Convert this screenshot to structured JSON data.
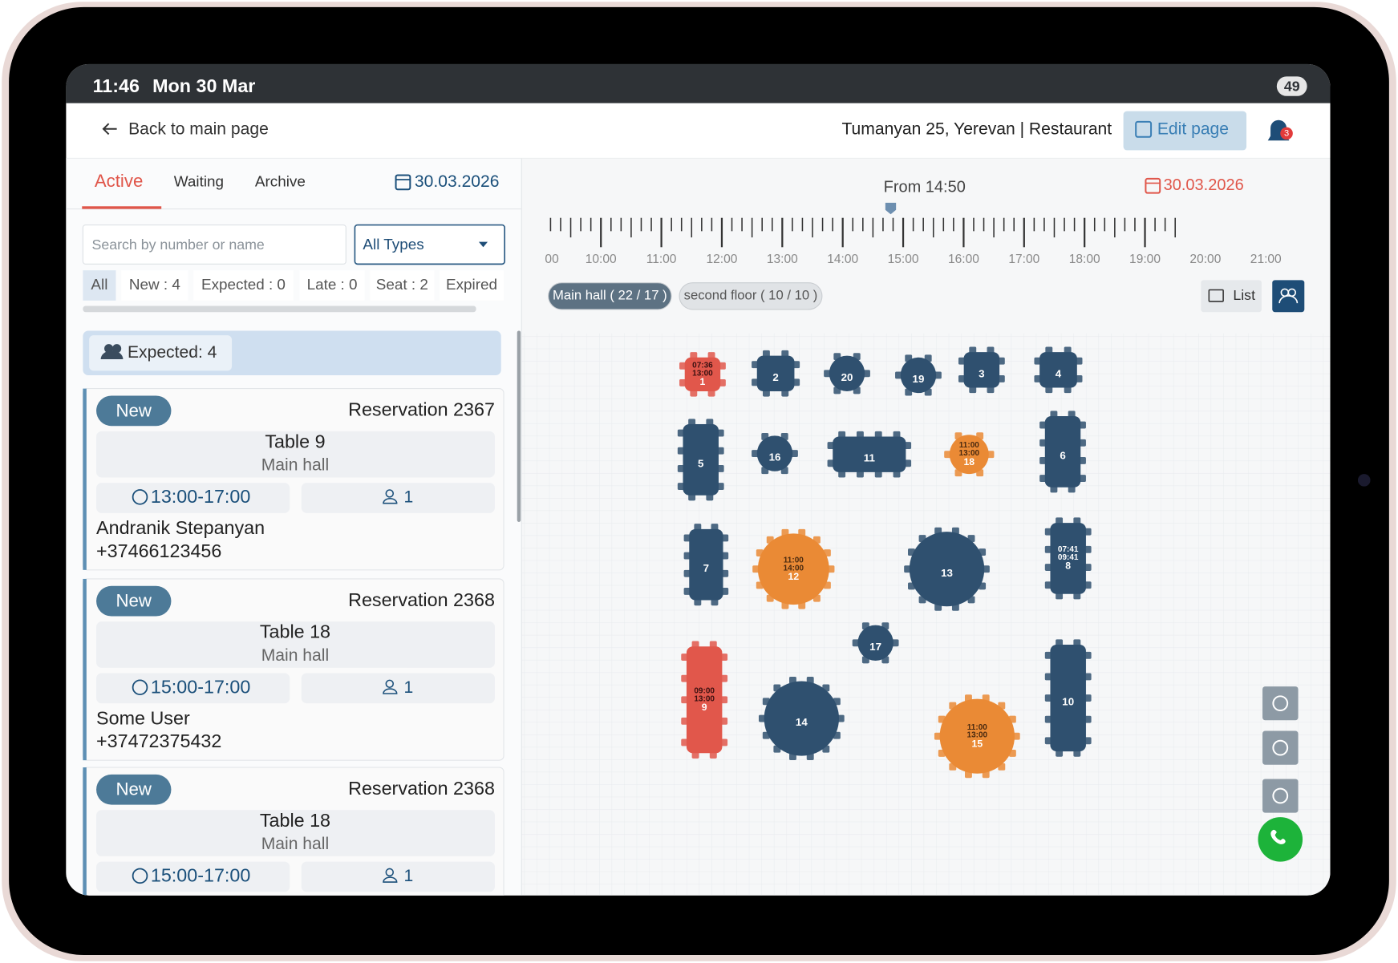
{
  "status_bar": {
    "time": "11:46",
    "date": "Mon 30 Mar",
    "battery": "49"
  },
  "header": {
    "back": "Back to main page",
    "location": "Tumanyan 25, Yerevan | Restaurant",
    "edit": "Edit page",
    "notifications": "3"
  },
  "tabs": [
    "Active",
    "Waiting",
    "Archive"
  ],
  "list_date": "30.03.2026",
  "search_placeholder": "Search by number or name",
  "type_filter": "All Types",
  "filters": [
    "All",
    "New : 4",
    "Expected : 0",
    "Late : 0",
    "Seat : 2",
    "Expired"
  ],
  "group": "Expected: 4",
  "reservations": [
    {
      "status": "New",
      "title": "Reservation 2367",
      "table": "Table 9",
      "hall": "Main hall",
      "time": "13:00-17:00",
      "guests": "1",
      "name": "Andranik Stepanyan",
      "phone": "+37466123456"
    },
    {
      "status": "New",
      "title": "Reservation 2368",
      "table": "Table 18",
      "hall": "Main hall",
      "time": "15:00-17:00",
      "guests": "1",
      "name": "Some User",
      "phone": "+37472375432"
    },
    {
      "status": "New",
      "title": "Reservation 2368",
      "table": "Table 18",
      "hall": "Main hall",
      "time": "15:00-17:00",
      "guests": "1"
    }
  ],
  "timeline": {
    "from": "From 14:50",
    "date": "30.03.2026",
    "labels": [
      "00",
      "10:00",
      "11:00",
      "12:00",
      "13:00",
      "14:00",
      "15:00",
      "16:00",
      "17:00",
      "18:00",
      "19:00",
      "20:00",
      "21:00"
    ]
  },
  "halls": [
    "Main hall ( 22 / 17 )",
    "second floor ( 10 / 10 )"
  ],
  "view_list": "List",
  "tables": [
    {
      "label": "1",
      "times": [
        "07:36",
        "13:00"
      ]
    },
    {
      "label": "2"
    },
    {
      "label": "20"
    },
    {
      "label": "19"
    },
    {
      "label": "3"
    },
    {
      "label": "4"
    },
    {
      "label": "5"
    },
    {
      "label": "16"
    },
    {
      "label": "11"
    },
    {
      "label": "18",
      "times": [
        "11:00",
        "13:00"
      ]
    },
    {
      "label": "6"
    },
    {
      "label": "7"
    },
    {
      "label": "12",
      "times": [
        "11:00",
        "14:00"
      ]
    },
    {
      "label": "13"
    },
    {
      "label": "8",
      "times": [
        "07:41",
        "09:41"
      ]
    },
    {
      "label": "17"
    },
    {
      "label": "9",
      "times": [
        "09:00",
        "13:00"
      ]
    },
    {
      "label": "14"
    },
    {
      "label": "15",
      "times": [
        "11:00",
        "13:00"
      ]
    },
    {
      "label": "10"
    }
  ]
}
